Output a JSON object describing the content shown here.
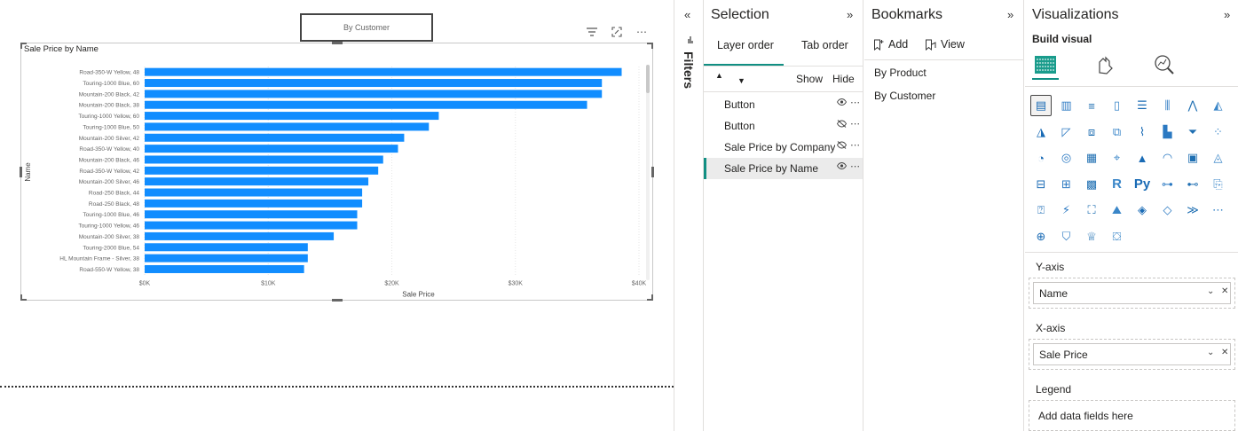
{
  "canvas": {
    "by_customer_button": "By Customer",
    "visual_title": "Sale Price by Name"
  },
  "chart_data": {
    "type": "bar",
    "orientation": "horizontal",
    "title": "Sale Price by Name",
    "xlabel": "Sale Price",
    "ylabel": "Name",
    "xlim": [
      0,
      40000
    ],
    "x_ticks": [
      "$0K",
      "$10K",
      "$20K",
      "$30K",
      "$40K"
    ],
    "grid": true,
    "bar_color": "#118DFF",
    "categories": [
      "Road-350-W Yellow, 48",
      "Touring-1000 Blue, 60",
      "Mountain-200 Black, 42",
      "Mountain-200 Black, 38",
      "Touring-1000 Yellow, 60",
      "Touring-1000 Blue, 50",
      "Mountain-200 Silver, 42",
      "Road-350-W Yellow, 40",
      "Mountain-200 Black, 46",
      "Road-350-W Yellow, 42",
      "Mountain-200 Silver, 46",
      "Road-250 Black, 44",
      "Road-250 Black, 48",
      "Touring-1000 Blue, 46",
      "Touring-1000 Yellow, 46",
      "Mountain-200 Silver, 38",
      "Touring-2000 Blue, 54",
      "HL Mountain Frame - Silver, 38",
      "Road-550-W Yellow, 38"
    ],
    "values": [
      38600,
      37000,
      37000,
      35800,
      23800,
      23000,
      21000,
      20500,
      19300,
      18900,
      18100,
      17600,
      17600,
      17200,
      17200,
      15300,
      13200,
      13200,
      12900
    ]
  },
  "filters": {
    "label": "Filters",
    "collapse_glyph": "«"
  },
  "selection": {
    "title": "Selection",
    "tabs": [
      "Layer order",
      "Tab order"
    ],
    "show": "Show",
    "hide": "Hide",
    "layers": [
      {
        "name": "Button",
        "visible": true
      },
      {
        "name": "Button",
        "visible": false
      },
      {
        "name": "Sale Price by Company...",
        "visible": false
      },
      {
        "name": "Sale Price by Name",
        "visible": true
      }
    ]
  },
  "bookmarks": {
    "title": "Bookmarks",
    "add": "Add",
    "view": "View",
    "items": [
      "By Product",
      "By Customer"
    ]
  },
  "visualizations": {
    "title": "Visualizations",
    "build_visual": "Build visual",
    "y_axis_label": "Y-axis",
    "y_axis_field": "Name",
    "x_axis_label": "X-axis",
    "x_axis_field": "Sale Price",
    "legend_label": "Legend",
    "legend_placeholder": "Add data fields here"
  }
}
